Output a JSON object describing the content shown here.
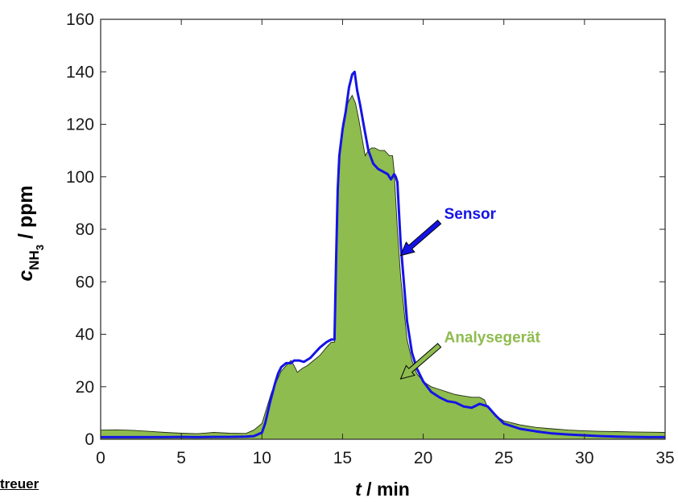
{
  "chart_data": {
    "type": "area",
    "xlabel_var": "t",
    "xlabel_unit": " / min",
    "ylabel_var": "c",
    "ylabel_sub": "NH",
    "ylabel_subsub": "3",
    "ylabel_unit": " / ppm",
    "xlim": [
      0,
      35
    ],
    "ylim": [
      0,
      160
    ],
    "xticks": [
      0,
      5,
      10,
      15,
      20,
      25,
      30,
      35
    ],
    "yticks": [
      0,
      20,
      40,
      60,
      80,
      100,
      120,
      140,
      160
    ],
    "grid": false,
    "series": [
      {
        "name": "Analysegerät",
        "style": "filled-area",
        "color": "#8fbc4f",
        "x": [
          0,
          1,
          2,
          3,
          4,
          5,
          6,
          7,
          8,
          9,
          9.5,
          10,
          10.3,
          10.6,
          10.9,
          11.2,
          11.5,
          11.8,
          12,
          12.2,
          12.5,
          12.8,
          13.2,
          13.6,
          14,
          14.3,
          14.5,
          14.6,
          14.7,
          14.8,
          15,
          15.2,
          15.4,
          15.6,
          15.8,
          16,
          16.2,
          16.4,
          16.6,
          16.8,
          17,
          17.3,
          17.6,
          17.9,
          18.1,
          18.2,
          18.4,
          18.6,
          18.8,
          19,
          19.3,
          19.6,
          20,
          20.5,
          21,
          21.5,
          22,
          22.5,
          23,
          23.5,
          23.8,
          24,
          24.5,
          25,
          26,
          27,
          28,
          29,
          30,
          31,
          32,
          33,
          34,
          35
        ],
        "y": [
          3.5,
          3.6,
          3.4,
          3.0,
          2.6,
          2.3,
          2.1,
          2.6,
          2.3,
          2.2,
          3.5,
          6,
          12,
          18,
          22,
          26,
          28,
          30,
          28,
          25.5,
          27,
          28,
          30,
          32,
          35,
          37,
          37,
          70,
          95,
          110,
          120,
          126,
          129,
          131,
          128,
          122,
          115,
          108,
          110,
          111,
          111,
          110,
          110,
          108,
          108,
          102,
          80,
          62,
          50,
          38,
          30,
          25,
          22,
          20,
          19,
          18,
          17,
          16.5,
          16,
          16,
          15,
          12,
          9,
          7,
          5.5,
          4.5,
          4,
          3.5,
          3.2,
          3,
          2.9,
          2.8,
          2.7,
          2.6
        ]
      },
      {
        "name": "Sensor",
        "style": "line",
        "color": "#1414e6",
        "x": [
          0,
          1,
          2,
          3,
          4,
          5,
          6,
          7,
          8,
          9,
          9.5,
          10,
          10.2,
          10.5,
          10.8,
          11,
          11.2,
          11.5,
          11.8,
          12,
          12.3,
          12.6,
          13,
          13.3,
          13.6,
          14,
          14.3,
          14.5,
          14.6,
          14.7,
          14.8,
          15,
          15.2,
          15.4,
          15.6,
          15.75,
          15.9,
          16.1,
          16.3,
          16.6,
          16.9,
          17.2,
          17.5,
          17.8,
          18,
          18.2,
          18.3,
          18.4,
          18.6,
          18.8,
          19,
          19.3,
          19.6,
          20,
          20.5,
          21,
          21.5,
          22,
          22.5,
          23,
          23.5,
          24,
          24.5,
          25,
          26,
          27,
          28,
          29,
          30,
          31,
          32,
          33,
          34,
          35
        ],
        "y": [
          0.8,
          0.8,
          0.8,
          0.8,
          0.8,
          0.9,
          0.8,
          0.9,
          0.9,
          1.0,
          1.2,
          2.5,
          6,
          14,
          21,
          25,
          27.5,
          29,
          29,
          30,
          30,
          29.5,
          31,
          33,
          35,
          37,
          38,
          38,
          68,
          95,
          108,
          118,
          125,
          134,
          139,
          140,
          133,
          127,
          120,
          110,
          105,
          103,
          102,
          101,
          99,
          101,
          100,
          98,
          75,
          60,
          45,
          33,
          27,
          22,
          18,
          16,
          14.5,
          14,
          12.5,
          12,
          13.5,
          12.5,
          9,
          6,
          4,
          3,
          2.2,
          1.8,
          1.5,
          1.2,
          1.0,
          0.9,
          0.8,
          0.8
        ]
      }
    ],
    "annotations": [
      {
        "text": "Sensor",
        "color": "#1414e6",
        "x": 18.6,
        "y": 70,
        "text_x": 21.3,
        "text_y": 84
      },
      {
        "text": "Analysegerät",
        "color": "#8fbc4f",
        "x": 18.6,
        "y": 23,
        "text_x": 21.3,
        "text_y": 37
      }
    ]
  },
  "cutoff_text": "treuer"
}
